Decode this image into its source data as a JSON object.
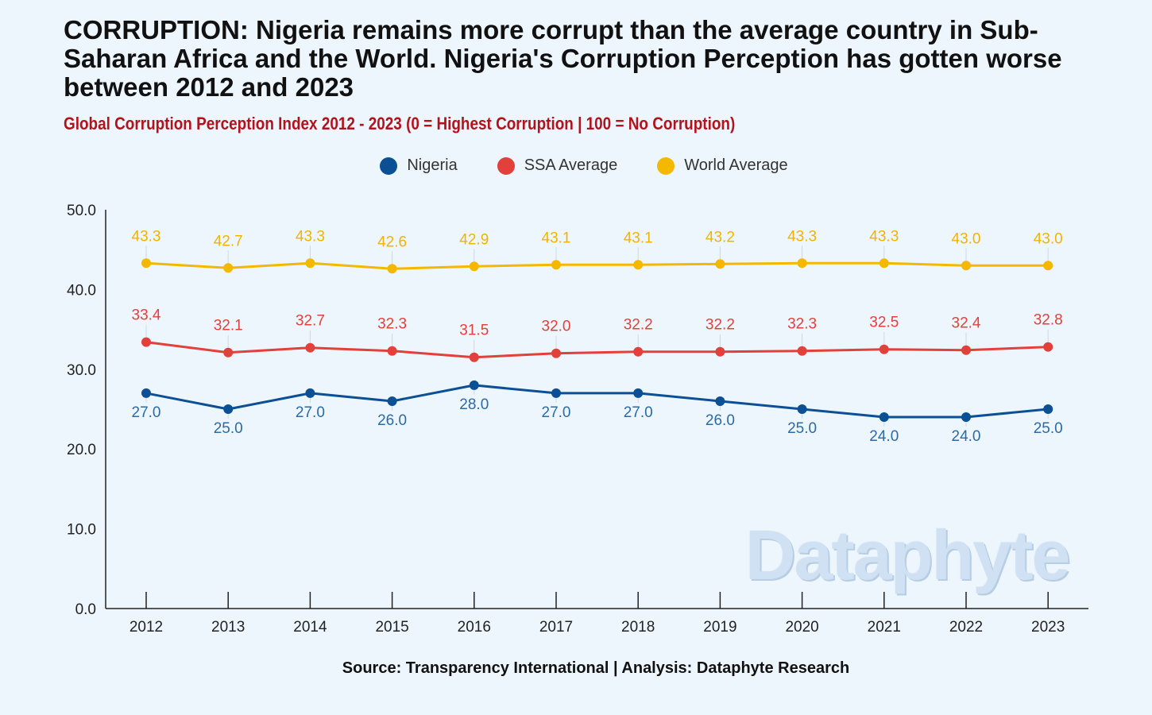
{
  "title": "CORRUPTION: Nigeria remains more corrupt than the average country in Sub-Saharan Africa and the World. Nigeria's Corruption Perception has gotten worse between 2012 and 2023",
  "subtitle": "Global Corruption Perception Index 2012 - 2023  (0 = Highest Corruption | 100 = No Corruption)",
  "source": "Source: Transparency International | Analysis: Dataphyte Research",
  "watermark": "Dataphyte",
  "colors": {
    "nigeria": "#0b4f94",
    "ssa": "#e2403a",
    "world": "#f5b800"
  },
  "chart_data": {
    "type": "line",
    "categories": [
      "2012",
      "2013",
      "2014",
      "2015",
      "2016",
      "2017",
      "2018",
      "2019",
      "2020",
      "2021",
      "2022",
      "2023"
    ],
    "ylim": [
      0,
      50
    ],
    "yticks": [
      "0.0",
      "10.0",
      "20.0",
      "30.0",
      "40.0",
      "50.0"
    ],
    "grid": false,
    "legend_position": "top-center",
    "series": [
      {
        "name": "Nigeria",
        "color": "#0b4f94",
        "values": [
          27.0,
          25.0,
          27.0,
          26.0,
          28.0,
          27.0,
          27.0,
          26.0,
          25.0,
          24.0,
          24.0,
          25.0
        ],
        "labels": [
          "27.0",
          "25.0",
          "27.0",
          "26.0",
          "28.0",
          "27.0",
          "27.0",
          "26.0",
          "25.0",
          "24.0",
          "24.0",
          "25.0"
        ]
      },
      {
        "name": "SSA Average",
        "color": "#e2403a",
        "values": [
          33.4,
          32.1,
          32.7,
          32.3,
          31.5,
          32.0,
          32.2,
          32.2,
          32.3,
          32.5,
          32.4,
          32.8
        ],
        "labels": [
          "33.4",
          "32.1",
          "32.7",
          "32.3",
          "31.5",
          "32.0",
          "32.2",
          "32.2",
          "32.3",
          "32.5",
          "32.4",
          "32.8"
        ]
      },
      {
        "name": "World Average",
        "color": "#f5b800",
        "values": [
          43.3,
          42.7,
          43.3,
          42.6,
          42.9,
          43.1,
          43.1,
          43.2,
          43.3,
          43.3,
          43.0,
          43.0
        ],
        "labels": [
          "43.3",
          "42.7",
          "43.3",
          "42.6",
          "42.9",
          "43.1",
          "43.1",
          "43.2",
          "43.3",
          "43.3",
          "43.0",
          "43.0"
        ]
      }
    ]
  }
}
